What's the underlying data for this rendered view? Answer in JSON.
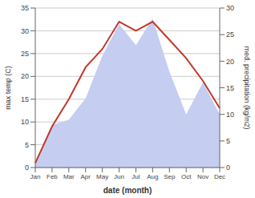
{
  "chart_data": {
    "type": "line",
    "categories": [
      "Jan",
      "Feb",
      "Mar",
      "Apr",
      "May",
      "Jun",
      "Jul",
      "Aug",
      "Sep",
      "Oct",
      "Nov",
      "Dec"
    ],
    "xlabel": "date (month)",
    "ylabel": "max temp (C)",
    "y2label": "med. precipitation (kg/m2)",
    "series": [
      {
        "type": "area",
        "axis": "y2",
        "color": "#c5cdf0",
        "values": [
          1,
          8,
          9,
          13,
          21,
          27,
          23,
          28,
          18,
          10,
          16,
          10
        ]
      },
      {
        "type": "line",
        "color": "#c0392b",
        "values": [
          1,
          9,
          15,
          22,
          26,
          32,
          30,
          32,
          28,
          24,
          19,
          13
        ]
      }
    ],
    "ylim": [
      0,
      35
    ],
    "yticks": [
      0,
      5,
      10,
      15,
      20,
      25,
      30,
      35
    ],
    "y2lim": [
      0,
      30
    ],
    "y2ticks": [
      0,
      5,
      10,
      15,
      20,
      25,
      30
    ],
    "grid": true
  }
}
